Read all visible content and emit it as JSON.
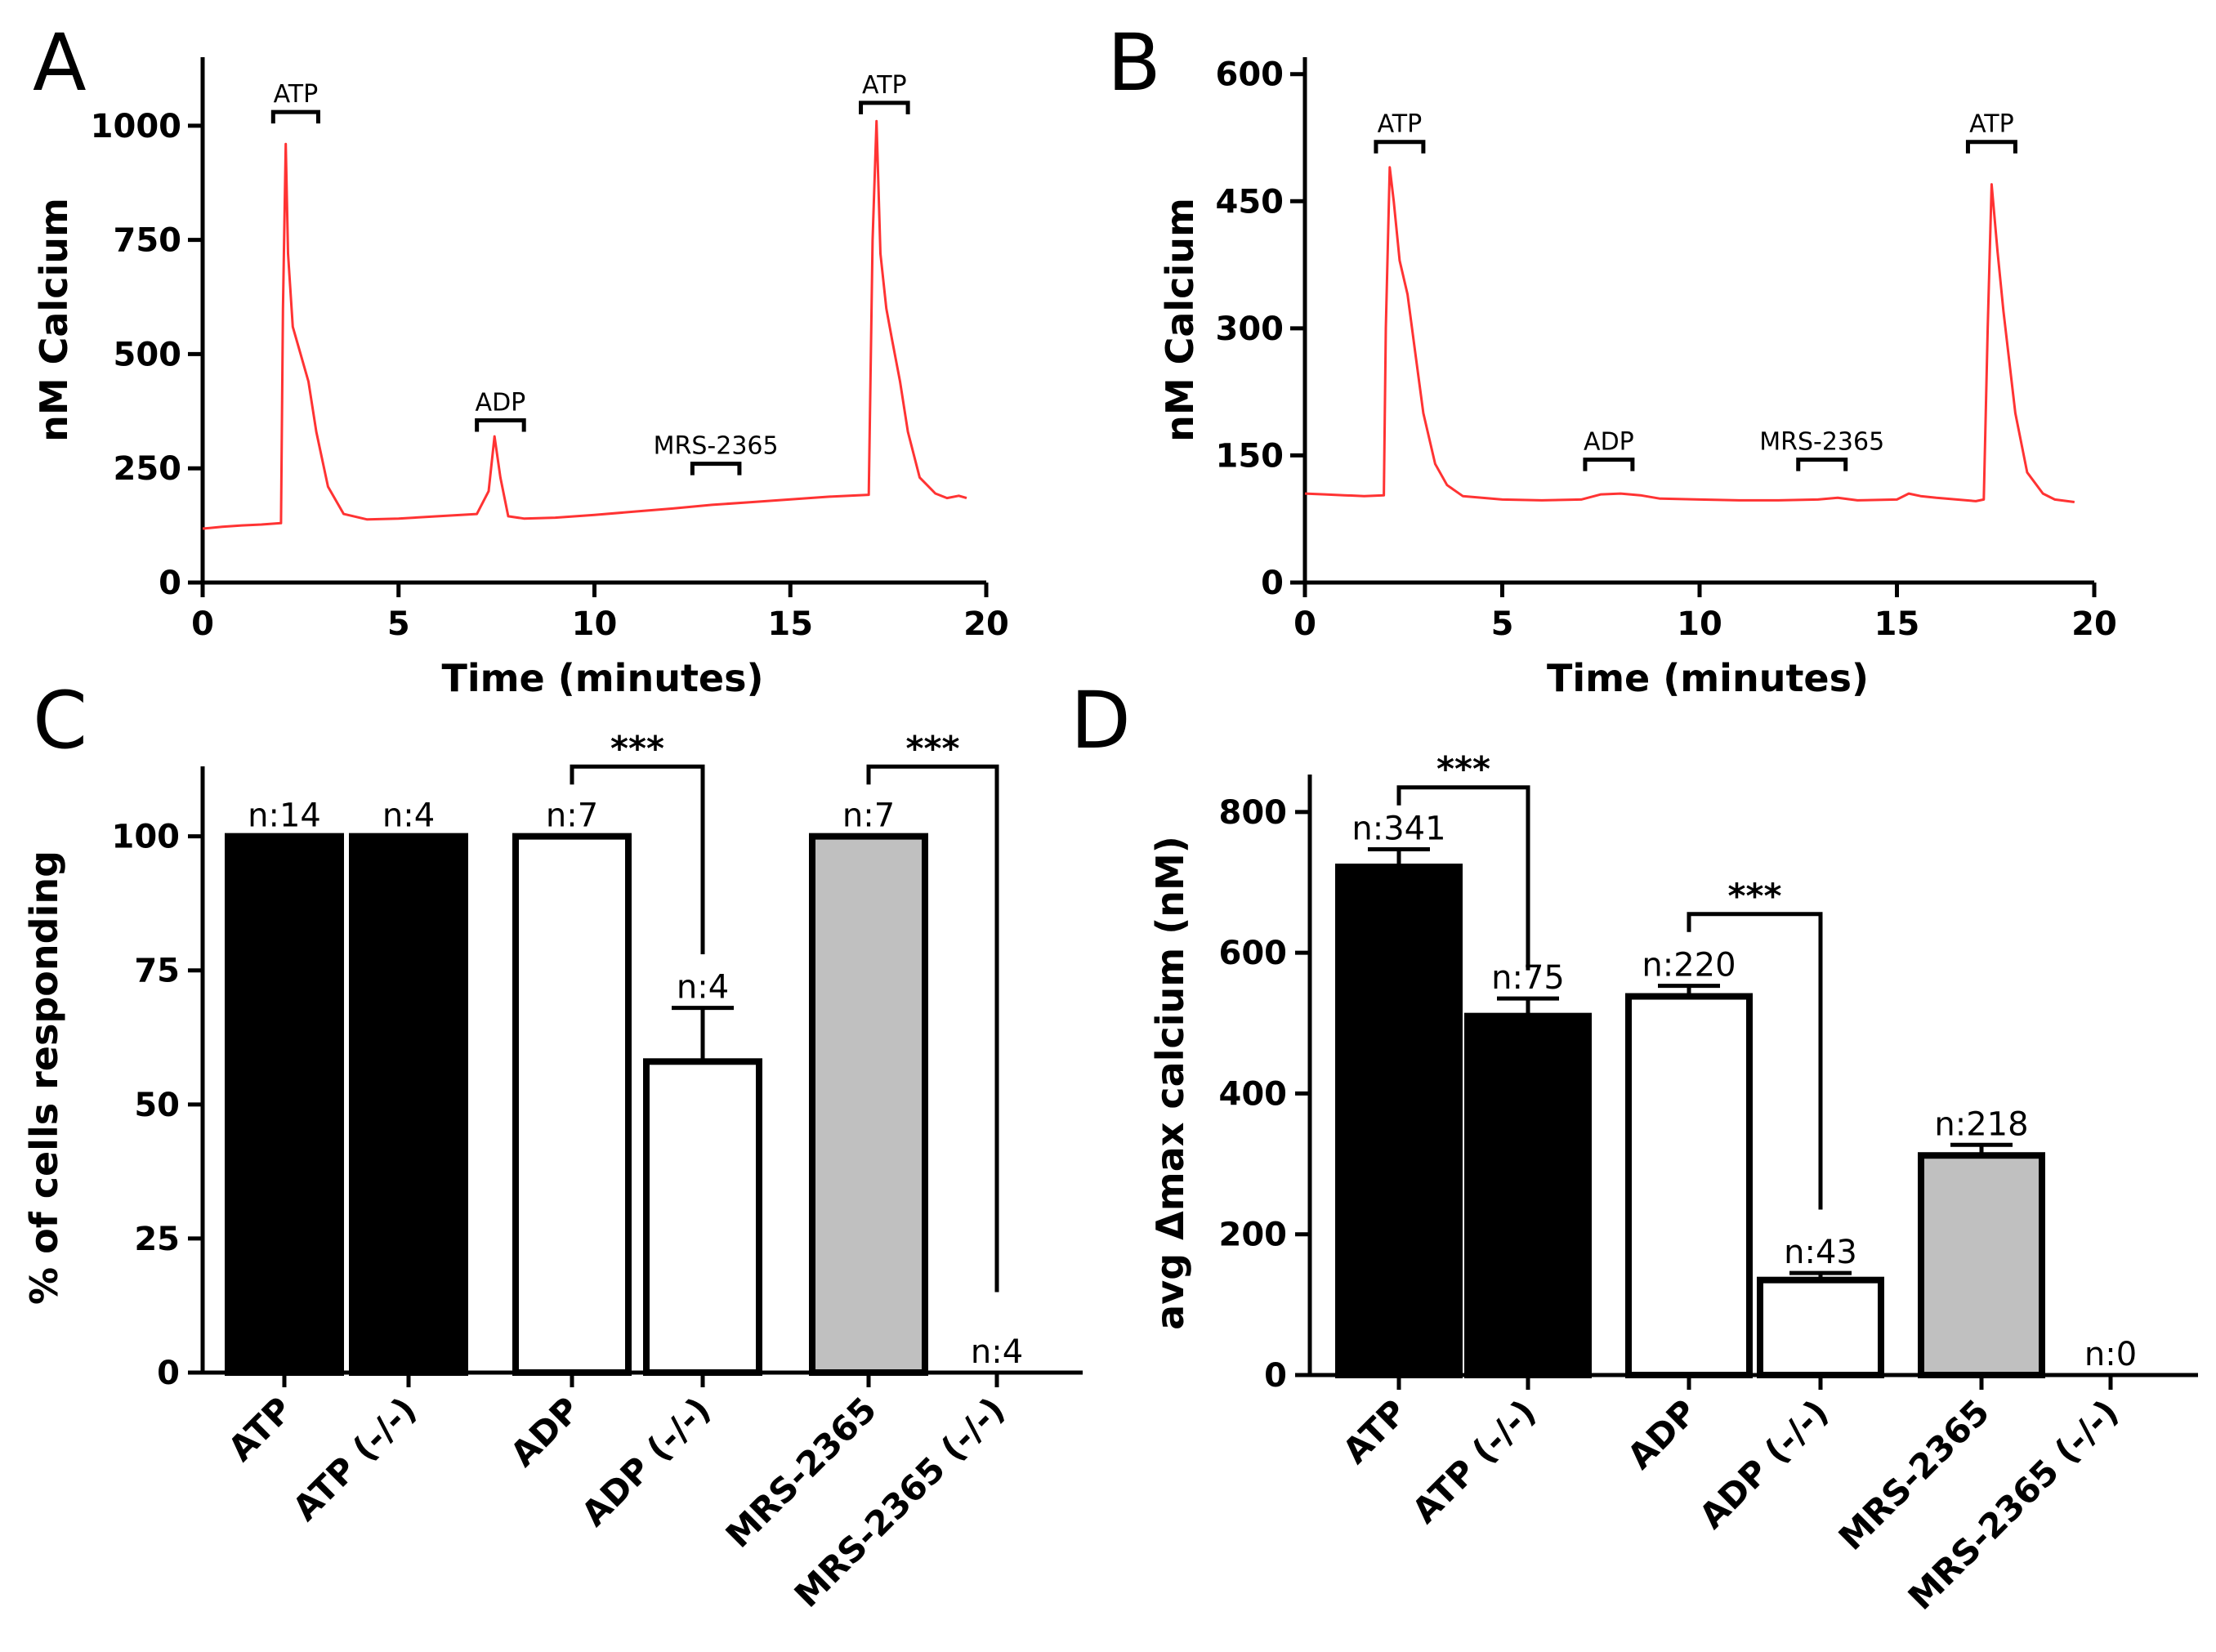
{
  "figure": {
    "panels": [
      "A",
      "B",
      "C",
      "D"
    ]
  },
  "chart_data": [
    {
      "id": "A",
      "type": "line",
      "xlabel": "Time (minutes)",
      "ylabel": "nM Calcium",
      "xlim": [
        0,
        20
      ],
      "ylim": [
        0,
        1150
      ],
      "xticks": [
        0,
        5,
        10,
        15,
        20
      ],
      "yticks": [
        0,
        250,
        500,
        750,
        1000
      ],
      "color": "#ff3333",
      "x": [
        0,
        0.5,
        1,
        1.5,
        2.0,
        2.05,
        2.12,
        2.18,
        2.3,
        2.5,
        2.7,
        2.9,
        3.2,
        3.6,
        4.2,
        5,
        6,
        7,
        7.3,
        7.45,
        7.6,
        7.8,
        8.2,
        9,
        10,
        11,
        12,
        13,
        14,
        15,
        16,
        17,
        17.1,
        17.2,
        17.3,
        17.45,
        17.6,
        17.8,
        18.0,
        18.3,
        18.7,
        19.0,
        19.3,
        19.5
      ],
      "y": [
        118,
        122,
        125,
        127,
        130,
        600,
        960,
        720,
        560,
        500,
        440,
        330,
        210,
        150,
        138,
        140,
        145,
        150,
        200,
        320,
        230,
        145,
        140,
        142,
        148,
        155,
        162,
        170,
        176,
        182,
        188,
        192,
        750,
        1010,
        720,
        600,
        530,
        440,
        330,
        230,
        195,
        185,
        190,
        185
      ],
      "annotations": [
        {
          "label": "ATP",
          "x0": 1.8,
          "x1": 2.95,
          "y": 1030
        },
        {
          "label": "ADP",
          "x0": 7.0,
          "x1": 8.2,
          "y": 355
        },
        {
          "label": "MRS-2365",
          "x0": 12.5,
          "x1": 13.7,
          "y": 260
        },
        {
          "label": "ATP",
          "x0": 16.8,
          "x1": 18.0,
          "y": 1050
        }
      ]
    },
    {
      "id": "B",
      "type": "line",
      "xlabel": "Time (minutes)",
      "ylabel": "nM Calcium",
      "xlim": [
        0,
        20
      ],
      "ylim": [
        0,
        620
      ],
      "xticks": [
        0,
        5,
        10,
        15,
        20
      ],
      "yticks": [
        0,
        150,
        300,
        450,
        600
      ],
      "color": "#ff3333",
      "x": [
        0,
        0.5,
        1,
        1.5,
        2.0,
        2.05,
        2.15,
        2.25,
        2.4,
        2.6,
        2.8,
        3.0,
        3.3,
        3.6,
        4.0,
        5,
        6,
        7,
        7.5,
        8.0,
        8.5,
        9,
        10,
        11,
        12,
        13,
        13.5,
        14,
        15,
        15.3,
        15.6,
        16,
        17,
        17.2,
        17.3,
        17.4,
        17.55,
        17.7,
        18.0,
        18.3,
        18.7,
        19.0,
        19.5
      ],
      "y": [
        105,
        104,
        103,
        102,
        103,
        300,
        490,
        450,
        380,
        340,
        270,
        200,
        140,
        115,
        102,
        98,
        97,
        98,
        104,
        105,
        103,
        99,
        98,
        97,
        97,
        98,
        100,
        97,
        98,
        105,
        102,
        100,
        96,
        98,
        300,
        470,
        390,
        320,
        200,
        130,
        105,
        98,
        95
      ],
      "annotations": [
        {
          "label": "ATP",
          "x0": 1.8,
          "x1": 3.0,
          "y": 520
        },
        {
          "label": "ADP",
          "x0": 7.1,
          "x1": 8.3,
          "y": 145
        },
        {
          "label": "MRS-2365",
          "x0": 12.5,
          "x1": 13.7,
          "y": 145
        },
        {
          "label": "ATP",
          "x0": 16.8,
          "x1": 18.0,
          "y": 520
        }
      ]
    },
    {
      "id": "C",
      "type": "bar",
      "ylabel": "% of cells responding",
      "ylim": [
        0,
        110
      ],
      "yticks": [
        0,
        25,
        50,
        75,
        100
      ],
      "categories": [
        "ATP",
        "ATP (-/-)",
        "ADP",
        "ADP (-/-)",
        "MRS-2365",
        "MRS-2365 (-/-)"
      ],
      "values": [
        100,
        100,
        100,
        58,
        100,
        0
      ],
      "errors": [
        0,
        0,
        0,
        10,
        0,
        0
      ],
      "fills": [
        "#000000",
        "#000000",
        "#ffffff",
        "#ffffff",
        "#c0c0c0",
        "#ffffff"
      ],
      "n_labels": [
        "n:14",
        "n:4",
        "n:7",
        "n:4",
        "n:7",
        "n:4"
      ],
      "significance": [
        {
          "from": 2,
          "to": 3,
          "label": "***",
          "level": 113,
          "drop_to": 78
        },
        {
          "from": 4,
          "to": 5,
          "label": "***",
          "level": 113,
          "drop_to": 15
        }
      ]
    },
    {
      "id": "D",
      "type": "bar",
      "ylabel": "avg Δmax calcium (nM)",
      "ylim": [
        0,
        830
      ],
      "yticks": [
        0,
        200,
        400,
        600,
        800
      ],
      "categories": [
        "ATP",
        "ATP (-/-)",
        "ADP",
        "ADP (-/-)",
        "MRS-2365",
        "MRS-2365 (-/-)"
      ],
      "values": [
        722,
        510,
        538,
        135,
        312,
        0
      ],
      "errors": [
        25,
        25,
        15,
        10,
        15,
        0
      ],
      "fills": [
        "#000000",
        "#000000",
        "#ffffff",
        "#ffffff",
        "#c0c0c0",
        "#ffffff"
      ],
      "n_labels": [
        "n:341",
        "n:75",
        "n:220",
        "n:43",
        "n:218",
        "n:0"
      ],
      "significance": [
        {
          "from": 0,
          "to": 1,
          "label": "***",
          "level": 835,
          "drop_to": 575
        },
        {
          "from": 2,
          "to": 3,
          "label": "***",
          "level": 655,
          "drop_to": 235
        }
      ]
    }
  ]
}
